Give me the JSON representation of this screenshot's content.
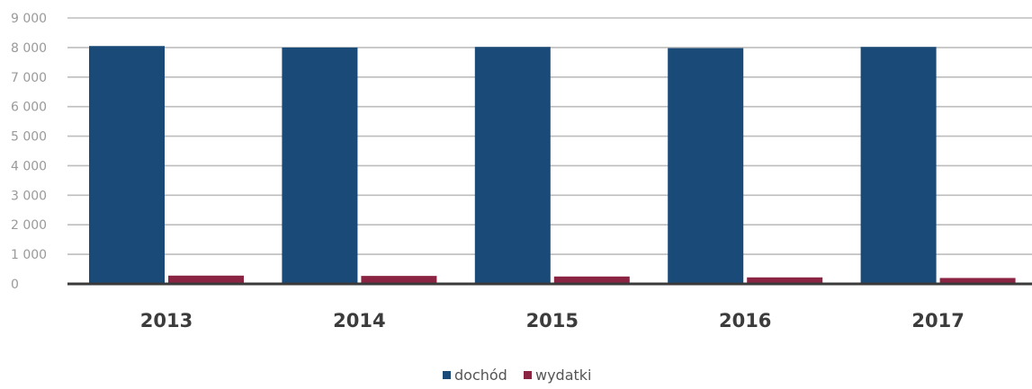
{
  "chart_data": {
    "type": "bar",
    "categories": [
      "2013",
      "2014",
      "2015",
      "2016",
      "2017"
    ],
    "series": [
      {
        "name": "dochód",
        "values": [
          8050,
          8000,
          8020,
          7980,
          8020
        ],
        "color": "#1a4a78"
      },
      {
        "name": "wydatki",
        "values": [
          280,
          270,
          250,
          220,
          200
        ],
        "color": "#8b2442"
      }
    ],
    "ylim": [
      0,
      9000
    ],
    "yticks": [
      0,
      1000,
      2000,
      3000,
      4000,
      5000,
      6000,
      7000,
      8000,
      9000
    ],
    "ytick_labels": [
      "0",
      "1 000",
      "2 000",
      "3 000",
      "4 000",
      "5 000",
      "6 000",
      "7 000",
      "8 000",
      "9 000"
    ],
    "grid": true,
    "legend_position": "bottom-center",
    "xlabel": "",
    "ylabel": "",
    "title": ""
  }
}
